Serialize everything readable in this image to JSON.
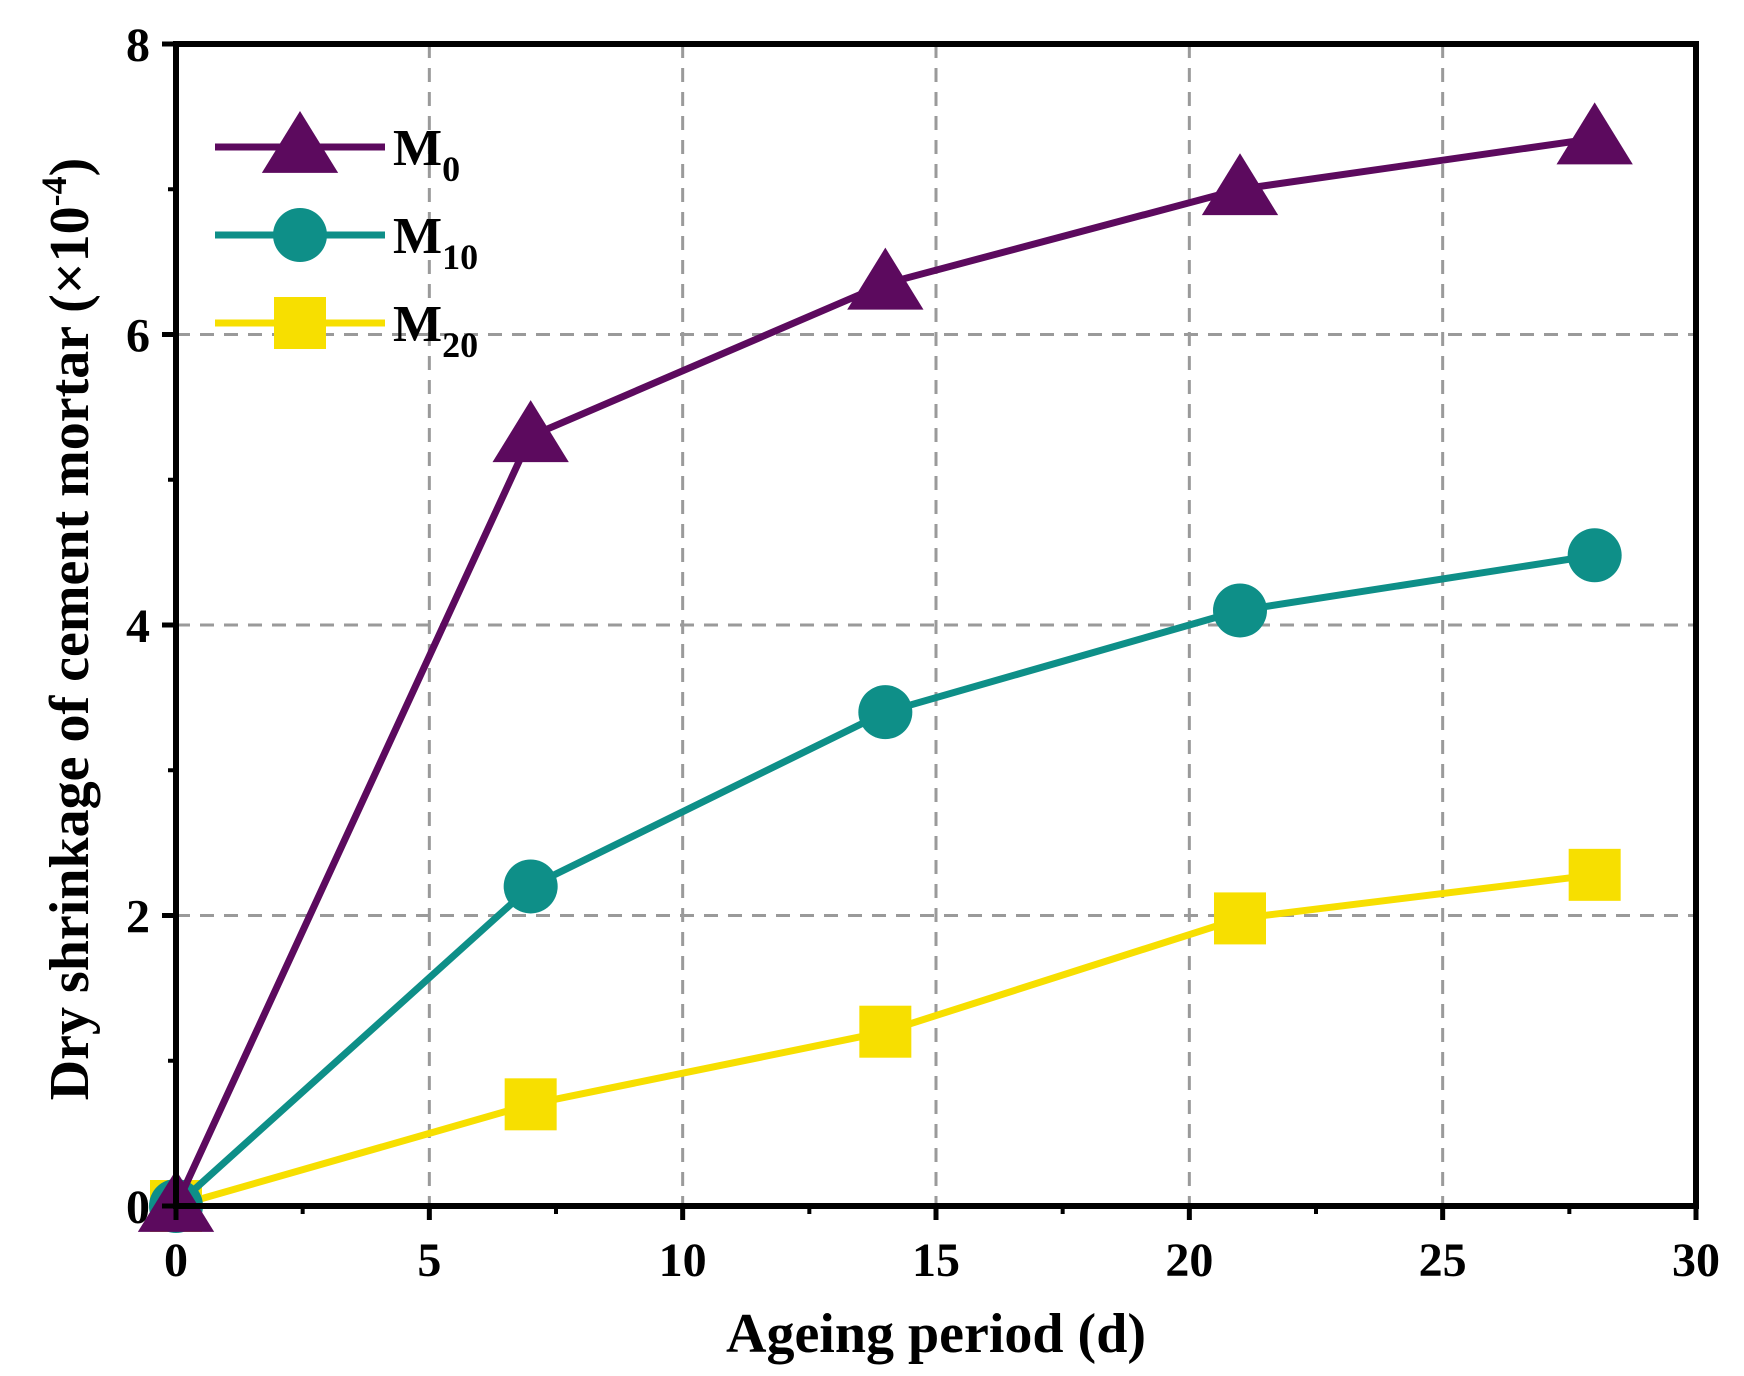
{
  "chart_data": {
    "type": "line",
    "xlabel": "Ageing period (d)",
    "ylabel": "Dry shrinkage of cement mortar (×10",
    "ylabel_exponent": "-4",
    "ylabel_suffix": ")",
    "xlim": [
      0,
      30
    ],
    "ylim": [
      0,
      8
    ],
    "x_ticks": [
      0,
      5,
      10,
      15,
      20,
      25,
      30
    ],
    "y_ticks": [
      0,
      2,
      4,
      6,
      8
    ],
    "grid": true,
    "legend_position": "top-left",
    "x": [
      0,
      7,
      14,
      21,
      28
    ],
    "series": [
      {
        "name": "M",
        "sub": "0",
        "color": "#5c0a5e",
        "marker": "triangle",
        "values": [
          0,
          5.3,
          6.35,
          7.0,
          7.35
        ]
      },
      {
        "name": "M",
        "sub": "10",
        "color": "#0e8f88",
        "marker": "circle",
        "values": [
          0,
          2.2,
          3.4,
          4.1,
          4.48
        ]
      },
      {
        "name": "M",
        "sub": "20",
        "color": "#f7df00",
        "marker": "square",
        "values": [
          0,
          0.7,
          1.2,
          1.98,
          2.28
        ]
      }
    ]
  }
}
